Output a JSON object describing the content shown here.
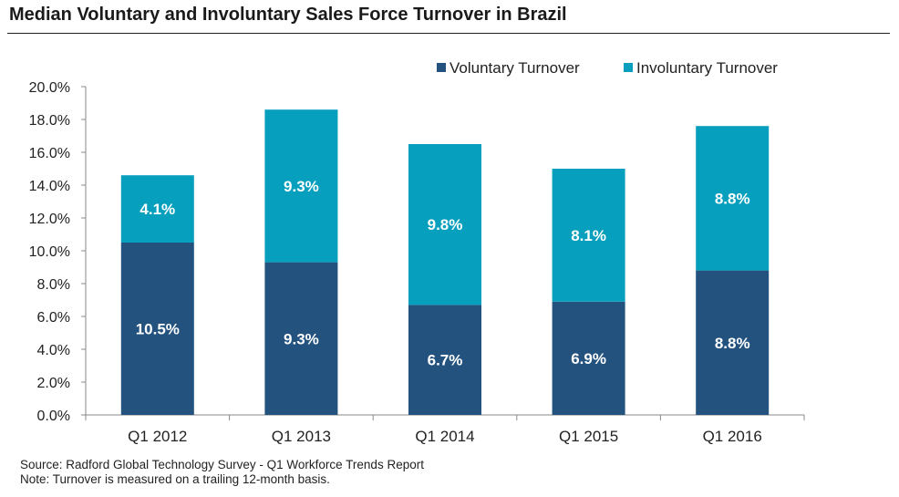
{
  "title": "Median Voluntary and Involuntary Sales Force Turnover in Brazil",
  "footnotes": {
    "source": "Source: Radford Global Technology Survey - Q1 Workforce Trends Report",
    "note": "Note: Turnover is measured on a trailing 12-month basis."
  },
  "chart_data": {
    "type": "bar",
    "stacked": true,
    "title": "Median Voluntary and Involuntary Sales Force Turnover in Brazil",
    "categories": [
      "Q1 2012",
      "Q1 2013",
      "Q1 2014",
      "Q1 2015",
      "Q1 2016"
    ],
    "series": [
      {
        "name": "Voluntary Turnover",
        "color": "#23527e",
        "values": [
          10.5,
          9.3,
          6.7,
          6.9,
          8.8
        ],
        "labels": [
          "10.5%",
          "9.3%",
          "6.7%",
          "6.9%",
          "8.8%"
        ]
      },
      {
        "name": "Involuntary Turnover",
        "color": "#069fbd",
        "values": [
          4.1,
          9.3,
          9.8,
          8.1,
          8.8
        ],
        "labels": [
          "4.1%",
          "9.3%",
          "9.8%",
          "8.1%",
          "8.8%"
        ]
      }
    ],
    "yticks": [
      "0.0%",
      "2.0%",
      "4.0%",
      "6.0%",
      "8.0%",
      "10.0%",
      "12.0%",
      "14.0%",
      "16.0%",
      "18.0%",
      "20.0%"
    ],
    "ylim": [
      0,
      20
    ],
    "xlabel": "",
    "ylabel": "",
    "grid": false,
    "legend_position": "top-right"
  }
}
